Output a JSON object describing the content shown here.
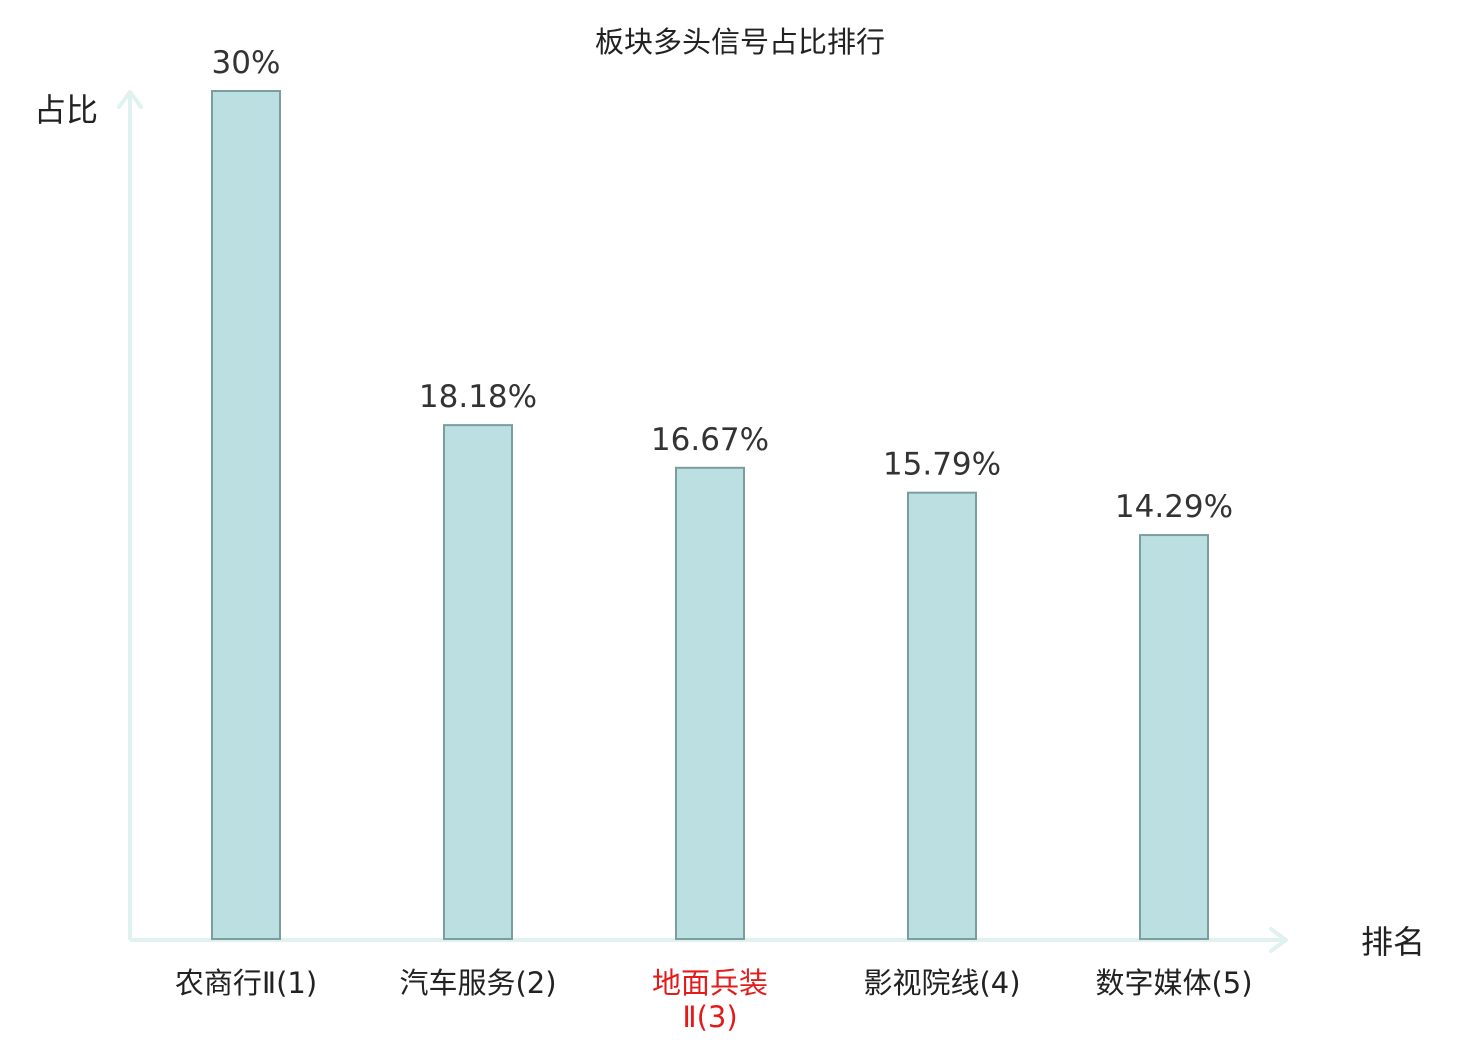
{
  "chart_data": {
    "type": "bar",
    "title": "板块多头信号占比排行",
    "ylabel": "占比",
    "xlabel": "排名",
    "categories": [
      {
        "lines": [
          "农商行Ⅱ(1)"
        ],
        "highlight": false
      },
      {
        "lines": [
          "汽车服务(2)"
        ],
        "highlight": false
      },
      {
        "lines": [
          "地面兵装",
          "Ⅱ(3)"
        ],
        "highlight": true
      },
      {
        "lines": [
          "影视院线(4)"
        ],
        "highlight": false
      },
      {
        "lines": [
          "数字媒体(5)"
        ],
        "highlight": false
      }
    ],
    "values": [
      30,
      18.18,
      16.67,
      15.79,
      14.29
    ],
    "value_labels": [
      "30%",
      "18.18%",
      "16.67%",
      "15.79%",
      "14.29%"
    ],
    "ylim": [
      0,
      30
    ],
    "grid": false,
    "colors": {
      "bar_fill": "#bce0e2",
      "bar_stroke": "#7a9ea0",
      "axis": "#dff2ef",
      "text": "#222222",
      "highlight": "#e31b1b"
    }
  }
}
